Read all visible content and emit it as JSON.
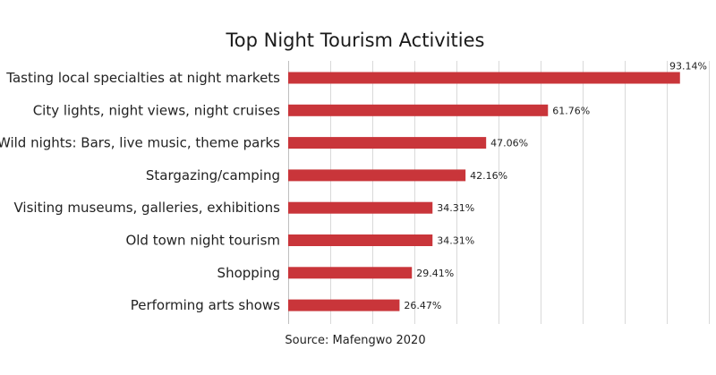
{
  "chart_data": {
    "type": "bar",
    "orientation": "horizontal",
    "title": "Top Night Tourism Activities",
    "source": "Source: Mafengwo 2020",
    "value_suffix": "%",
    "categories": [
      "Tasting local specialties at night markets",
      "City lights, night views, night cruises",
      "Wild nights: Bars, live music, theme parks",
      "Stargazing/camping",
      "Visiting museums, galleries, exhibitions",
      "Old town night tourism",
      "Shopping",
      "Performing arts shows"
    ],
    "values": [
      93.14,
      61.76,
      47.06,
      42.16,
      34.31,
      34.31,
      29.41,
      26.47
    ],
    "xlim": [
      0,
      100
    ],
    "grid": true,
    "legend": "none",
    "bar_color": "#c9353a"
  }
}
